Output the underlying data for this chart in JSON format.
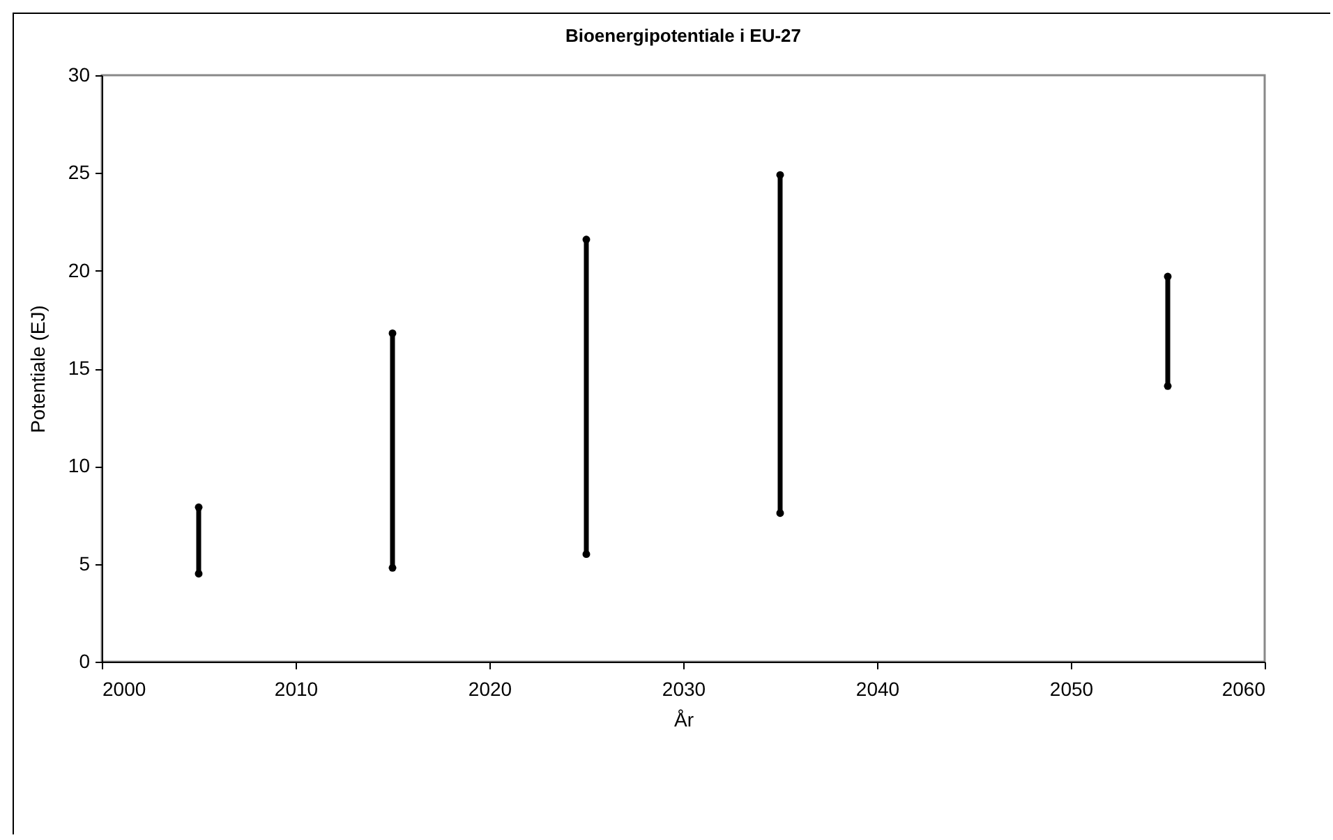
{
  "chart_data": {
    "type": "line",
    "title": "Bioenergipotentiale i EU-27",
    "xlabel": "År",
    "ylabel": "Potentiale (EJ)",
    "series": [
      {
        "color": "#000000",
        "x": [
          2005,
          2005
        ],
        "values": [
          4.5,
          7.9
        ]
      },
      {
        "color": "#000000",
        "x": [
          2015,
          2015
        ],
        "values": [
          4.8,
          16.8
        ]
      },
      {
        "color": "#000000",
        "x": [
          2025,
          2025
        ],
        "values": [
          5.5,
          21.6
        ]
      },
      {
        "color": "#000000",
        "x": [
          2035,
          2035
        ],
        "values": [
          7.6,
          24.9
        ]
      },
      {
        "color": "#000000",
        "x": [
          2055,
          2055
        ],
        "values": [
          14.1,
          19.7
        ]
      }
    ],
    "xlim": [
      2000,
      2060
    ],
    "xticks": [
      2000,
      2010,
      2020,
      2030,
      2040,
      2050,
      2060
    ],
    "ylim": [
      0,
      30
    ],
    "yticks": [
      0,
      5,
      10,
      15,
      20,
      25,
      30
    ],
    "marker": "circle",
    "line_style": "solid",
    "grid": false,
    "legend": false
  }
}
